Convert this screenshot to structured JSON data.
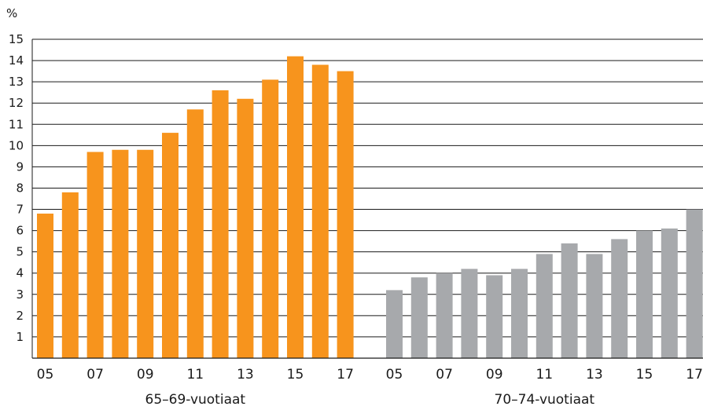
{
  "chart_data": {
    "type": "bar",
    "unit_label": "%",
    "ylim": [
      0,
      15
    ],
    "yticks": [
      1,
      2,
      3,
      4,
      5,
      6,
      7,
      8,
      9,
      10,
      11,
      12,
      13,
      14,
      15
    ],
    "grid": true,
    "x": [
      "05",
      "06",
      "07",
      "08",
      "09",
      "10",
      "11",
      "12",
      "13",
      "14",
      "15",
      "16",
      "17"
    ],
    "x_tick_labels": [
      "05",
      "",
      "07",
      "",
      "09",
      "",
      "11",
      "",
      "13",
      "",
      "15",
      "",
      "17"
    ],
    "groups": [
      {
        "name": "65–69-vuotiaat",
        "color": "#f7941d",
        "values": [
          6.8,
          7.8,
          9.7,
          9.8,
          9.8,
          10.6,
          11.7,
          12.6,
          12.2,
          13.1,
          14.2,
          13.8,
          13.5
        ]
      },
      {
        "name": "70–74-vuotiaat",
        "color": "#a7a9ac",
        "values": [
          3.2,
          3.8,
          4.0,
          4.2,
          3.9,
          4.2,
          4.9,
          5.4,
          4.9,
          5.6,
          6.0,
          6.1,
          7.0
        ]
      }
    ]
  }
}
